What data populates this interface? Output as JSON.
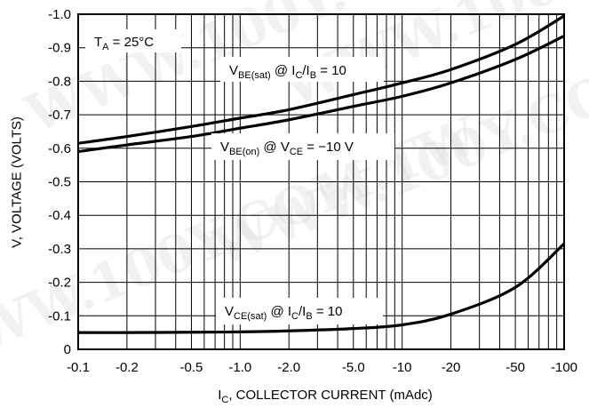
{
  "chart_data": {
    "type": "line",
    "x_scale": "log",
    "xlabel": {
      "main": "I",
      "sub": "C",
      "rest": ", COLLECTOR CURRENT (mAdc)"
    },
    "ylabel": "V, VOLTAGE (VOLTS)",
    "xlim": [
      -0.1,
      -100
    ],
    "ylim": [
      0,
      -1.0
    ],
    "x_ticks": [
      -0.1,
      -0.2,
      -0.5,
      -1.0,
      -2.0,
      -5.0,
      -10,
      -20,
      -50,
      -100
    ],
    "x_tick_labels": [
      "-0.1",
      "-0.2",
      "-0.5",
      "-1.0",
      "-2.0",
      "-5.0",
      "-10",
      "-20",
      "-50",
      "-100"
    ],
    "y_ticks": [
      0,
      -0.1,
      -0.2,
      -0.3,
      -0.4,
      -0.5,
      -0.6,
      -0.7,
      -0.8,
      -0.9,
      -1.0
    ],
    "y_tick_labels": [
      "0",
      "-0.1",
      "-0.2",
      "-0.3",
      "-0.4",
      "-0.5",
      "-0.6",
      "-0.7",
      "-0.8",
      "-0.9",
      "-1.0"
    ],
    "grid": true,
    "annotations": {
      "temperature": {
        "main": "T",
        "sub": "A",
        "rest": " = 25°C"
      },
      "vbe_sat": [
        {
          "t": "V"
        },
        {
          "t": "BE(sat)",
          "sub": true
        },
        {
          "t": " @ I"
        },
        {
          "t": "C",
          "sub": true
        },
        {
          "t": "/I"
        },
        {
          "t": "B",
          "sub": true
        },
        {
          "t": " = 10"
        }
      ],
      "vbe_on": [
        {
          "t": "V"
        },
        {
          "t": "BE(on)",
          "sub": true
        },
        {
          "t": " @ V"
        },
        {
          "t": "CE",
          "sub": true
        },
        {
          "t": " = −10 V"
        }
      ],
      "vce_sat": [
        {
          "t": "V"
        },
        {
          "t": "CE(sat)",
          "sub": true
        },
        {
          "t": " @ I"
        },
        {
          "t": "C",
          "sub": true
        },
        {
          "t": "/I"
        },
        {
          "t": "B",
          "sub": true
        },
        {
          "t": " = 10"
        }
      ]
    },
    "series": [
      {
        "id": "vbe-sat",
        "x": [
          -0.1,
          -0.2,
          -0.5,
          -1.0,
          -2.0,
          -5.0,
          -10,
          -20,
          -50,
          -100
        ],
        "y": [
          -0.615,
          -0.635,
          -0.665,
          -0.69,
          -0.715,
          -0.76,
          -0.795,
          -0.835,
          -0.91,
          -0.995
        ]
      },
      {
        "id": "vbe-on",
        "x": [
          -0.1,
          -0.2,
          -0.5,
          -1.0,
          -2.0,
          -5.0,
          -10,
          -20,
          -50,
          -100
        ],
        "y": [
          -0.59,
          -0.61,
          -0.635,
          -0.66,
          -0.685,
          -0.725,
          -0.755,
          -0.795,
          -0.865,
          -0.935
        ]
      },
      {
        "id": "vce-sat",
        "x": [
          -0.1,
          -0.2,
          -0.5,
          -1.0,
          -2.0,
          -5.0,
          -10,
          -20,
          -50,
          -100
        ],
        "y": [
          -0.05,
          -0.05,
          -0.051,
          -0.052,
          -0.055,
          -0.062,
          -0.073,
          -0.105,
          -0.185,
          -0.315
        ]
      }
    ],
    "watermark": "WWW.100Y.COM.TW"
  }
}
